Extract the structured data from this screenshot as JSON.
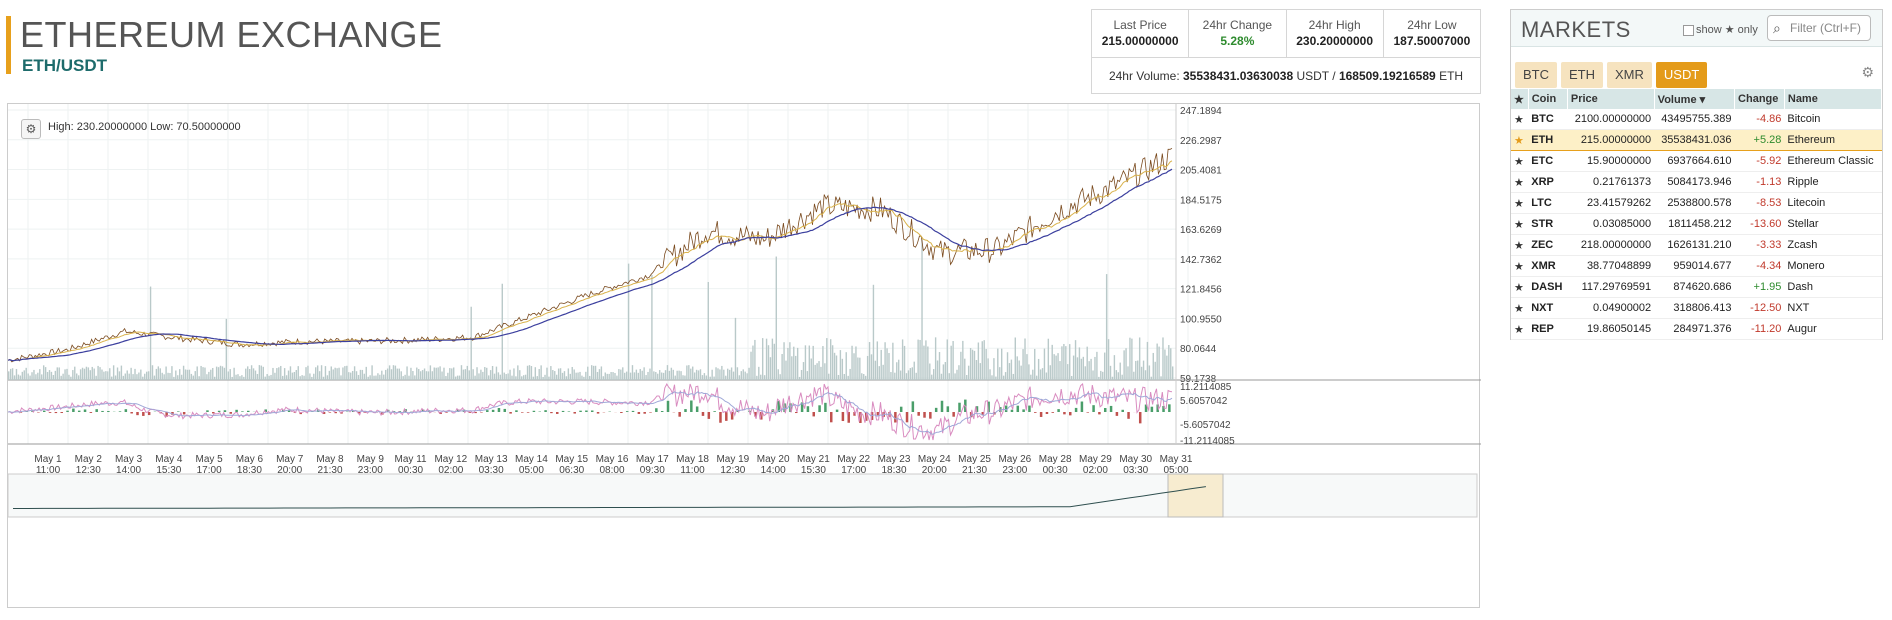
{
  "header": {
    "title": "ETHEREUM EXCHANGE",
    "pair": "ETH/USDT"
  },
  "stats": {
    "last_price_label": "Last Price",
    "last_price": "215.00000000",
    "change_label": "24hr Change",
    "change": "5.28%",
    "high_label": "24hr High",
    "high": "230.20000000",
    "low_label": "24hr Low",
    "low": "187.50007000",
    "volume_label": "24hr Volume:",
    "volume_usdt": "35538431.03630038",
    "volume_usdt_unit": "USDT /",
    "volume_eth": "168509.19216589",
    "volume_eth_unit": "ETH"
  },
  "chart": {
    "hilo": "High: 230.20000000   Low: 70.50000000",
    "price_ticks": [
      "247.1894",
      "226.2987",
      "205.4081",
      "184.5175",
      "163.6269",
      "142.7362",
      "121.8456",
      "100.9550",
      "80.0644",
      "59.1738"
    ],
    "macd_ticks": [
      "11.2114085",
      "5.6057042",
      "-5.6057042",
      "-11.2114085"
    ],
    "date_labels": [
      [
        "May 1",
        "11:00"
      ],
      [
        "May 2",
        "12:30"
      ],
      [
        "May 3",
        "14:00"
      ],
      [
        "May 4",
        "15:30"
      ],
      [
        "May 5",
        "17:00"
      ],
      [
        "May 6",
        "18:30"
      ],
      [
        "May 7",
        "20:00"
      ],
      [
        "May 8",
        "21:30"
      ],
      [
        "May 9",
        "23:00"
      ],
      [
        "May 11",
        "00:30"
      ],
      [
        "May 12",
        "02:00"
      ],
      [
        "May 13",
        "03:30"
      ],
      [
        "May 14",
        "05:00"
      ],
      [
        "May 15",
        "06:30"
      ],
      [
        "May 16",
        "08:00"
      ],
      [
        "May 17",
        "09:30"
      ],
      [
        "May 18",
        "11:00"
      ],
      [
        "May 19",
        "12:30"
      ],
      [
        "May 20",
        "14:00"
      ],
      [
        "May 21",
        "15:30"
      ],
      [
        "May 22",
        "17:00"
      ],
      [
        "May 23",
        "18:30"
      ],
      [
        "May 24",
        "20:00"
      ],
      [
        "May 25",
        "21:30"
      ],
      [
        "May 26",
        "23:00"
      ],
      [
        "May 28",
        "00:30"
      ],
      [
        "May 29",
        "02:00"
      ],
      [
        "May 30",
        "03:30"
      ],
      [
        "May 31",
        "05:00"
      ]
    ],
    "colors": {
      "price": "#7a4a1e",
      "ma_short": "#d9b24a",
      "ma_long": "#3b3f9e",
      "volume": "#b9c9c9",
      "macd": "#d98cc0",
      "signal": "#9fa8d8",
      "hist_pos": "#4a9e6a",
      "hist_neg": "#c0504d"
    }
  },
  "markets": {
    "title": "MARKETS",
    "show_label": "show ★ only",
    "filter_placeholder": "Filter (Ctrl+F)",
    "tabs": [
      "BTC",
      "ETH",
      "XMR",
      "USDT"
    ],
    "active_tab": "USDT",
    "columns": [
      "★",
      "Coin",
      "Price",
      "Volume ▾",
      "Change",
      "Name"
    ],
    "rows": [
      {
        "coin": "BTC",
        "price": "2100.00000000",
        "volume": "43495755.389",
        "change": "-4.86",
        "name": "Bitcoin"
      },
      {
        "coin": "ETH",
        "price": "215.00000000",
        "volume": "35538431.036",
        "change": "+5.28",
        "name": "Ethereum"
      },
      {
        "coin": "ETC",
        "price": "15.90000000",
        "volume": "6937664.610",
        "change": "-5.92",
        "name": "Ethereum Classic"
      },
      {
        "coin": "XRP",
        "price": "0.21761373",
        "volume": "5084173.946",
        "change": "-1.13",
        "name": "Ripple"
      },
      {
        "coin": "LTC",
        "price": "23.41579262",
        "volume": "2538800.578",
        "change": "-8.53",
        "name": "Litecoin"
      },
      {
        "coin": "STR",
        "price": "0.03085000",
        "volume": "1811458.212",
        "change": "-13.60",
        "name": "Stellar"
      },
      {
        "coin": "ZEC",
        "price": "218.00000000",
        "volume": "1626131.210",
        "change": "-3.33",
        "name": "Zcash"
      },
      {
        "coin": "XMR",
        "price": "38.77048899",
        "volume": "959014.677",
        "change": "-4.34",
        "name": "Monero"
      },
      {
        "coin": "DASH",
        "price": "117.29769591",
        "volume": "874620.686",
        "change": "+1.95",
        "name": "Dash"
      },
      {
        "coin": "NXT",
        "price": "0.04900002",
        "volume": "318806.413",
        "change": "-12.50",
        "name": "NXT"
      },
      {
        "coin": "REP",
        "price": "19.86050145",
        "volume": "284971.376",
        "change": "-11.20",
        "name": "Augur"
      }
    ]
  },
  "chart_data": {
    "type": "line",
    "x": [
      "May 1 11:00",
      "May 3 14:00",
      "May 5 17:00",
      "May 7 20:00",
      "May 9 23:00",
      "May 12 02:00",
      "May 14 05:00",
      "May 16 08:00",
      "May 18 11:00",
      "May 19 12:30",
      "May 20 14:00",
      "May 21 15:30",
      "May 22 17:00",
      "May 23 18:30",
      "May 24 20:00",
      "May 25 21:30",
      "May 26 23:00",
      "May 28 00:30",
      "May 29 02:00",
      "May 30 03:30",
      "May 31 05:00"
    ],
    "series": [
      {
        "values": [
          73,
          80,
          93,
          88,
          84,
          86,
          86,
          87,
          89,
          104,
          119,
          132,
          163,
          157,
          180,
          178,
          148,
          150,
          176,
          194,
          215
        ]
      }
    ],
    "ylim": [
      59.1738,
      247.1894
    ]
  }
}
